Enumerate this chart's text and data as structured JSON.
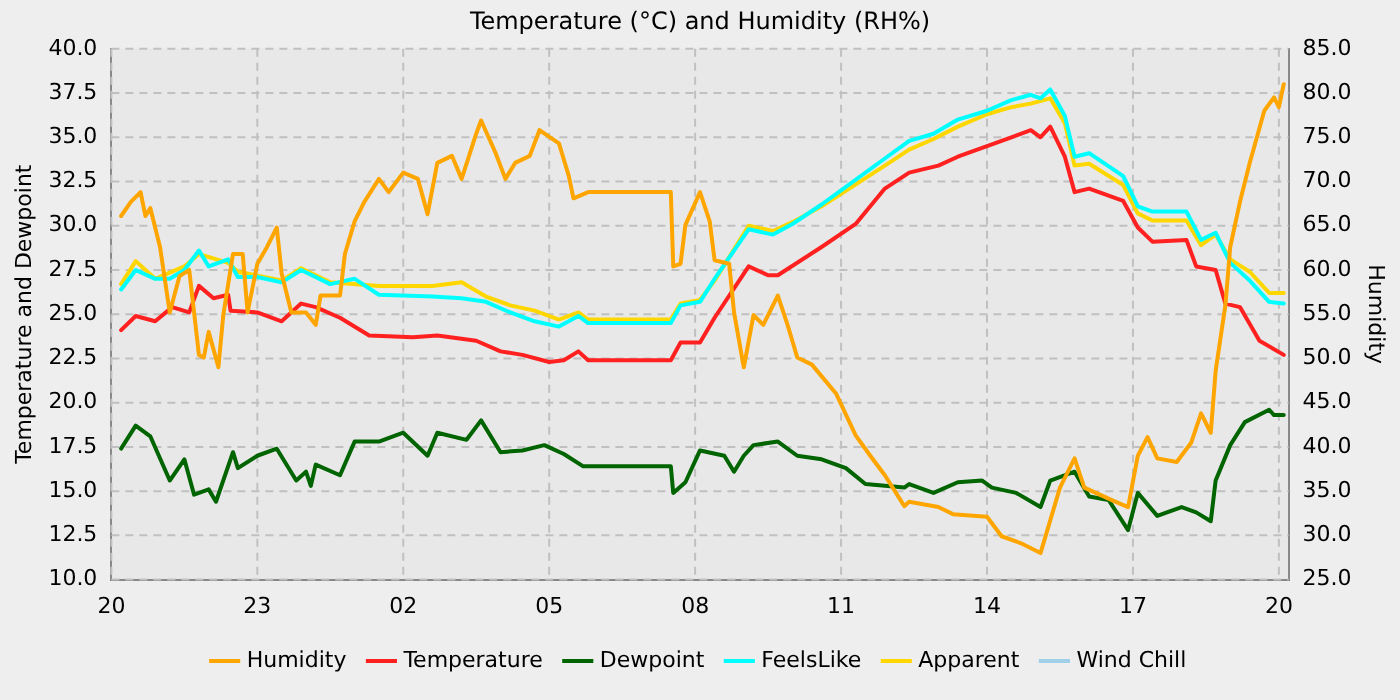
{
  "chart_data": {
    "type": "line",
    "title": "Temperature (°C) and Humidity (RH%)",
    "ylabel": "Temperature and Dewpoint",
    "y2label": "Humidity",
    "xlim": [
      "--01-01T20:00",
      "--01-02T20:12"
    ],
    "xticks": [
      {
        "value": "--01-01T20:00",
        "label": "20"
      },
      {
        "value": "--01-01T23:00",
        "label": "23"
      },
      {
        "value": "--01-02T02:00",
        "label": "02"
      },
      {
        "value": "--01-02T05:00",
        "label": "05"
      },
      {
        "value": "--01-02T08:00",
        "label": "08"
      },
      {
        "value": "--01-02T11:00",
        "label": "11"
      },
      {
        "value": "--01-02T14:00",
        "label": "14"
      },
      {
        "value": "--01-02T17:00",
        "label": "17"
      },
      {
        "value": "--01-02T20:00",
        "label": "20"
      }
    ],
    "ylim": [
      10,
      40
    ],
    "yticks": [
      {
        "value": 10,
        "label": "10.0"
      },
      {
        "value": 12.5,
        "label": "12.5"
      },
      {
        "value": 15,
        "label": "15.0"
      },
      {
        "value": 17.5,
        "label": "17.5"
      },
      {
        "value": 20,
        "label": "20.0"
      },
      {
        "value": 22.5,
        "label": "22.5"
      },
      {
        "value": 25,
        "label": "25.0"
      },
      {
        "value": 27.5,
        "label": "27.5"
      },
      {
        "value": 30,
        "label": "30.0"
      },
      {
        "value": 32.5,
        "label": "32.5"
      },
      {
        "value": 35,
        "label": "35.0"
      },
      {
        "value": 37.5,
        "label": "37.5"
      },
      {
        "value": 40,
        "label": "40.0"
      }
    ],
    "y2lim": [
      25,
      85
    ],
    "y2ticks": [
      {
        "value": 25,
        "label": "25.0"
      },
      {
        "value": 30,
        "label": "30.0"
      },
      {
        "value": 35,
        "label": "35.0"
      },
      {
        "value": 40,
        "label": "40.0"
      },
      {
        "value": 45,
        "label": "45.0"
      },
      {
        "value": 50,
        "label": "50.0"
      },
      {
        "value": 55,
        "label": "55.0"
      },
      {
        "value": 60,
        "label": "60.0"
      },
      {
        "value": 65,
        "label": "65.0"
      },
      {
        "value": 70,
        "label": "70.0"
      },
      {
        "value": 75,
        "label": "75.0"
      },
      {
        "value": 80,
        "label": "80.0"
      },
      {
        "value": 85,
        "label": "85.0"
      }
    ],
    "grid": true,
    "legend": "bottom",
    "marker": "none",
    "line_style": "solid",
    "series": [
      {
        "name": "Humidity",
        "color": "#ffa500",
        "axis": "y2",
        "x": [
          "--01-01T20:12",
          "--01-01T20:24",
          "--01-01T20:36",
          "--01-01T20:42",
          "--01-01T20:48",
          "--01-01T21:00",
          "--01-01T21:12",
          "--01-01T21:24",
          "--01-01T21:36",
          "--01-01T21:48",
          "--01-01T21:54",
          "--01-01T22:00",
          "--01-01T22:12",
          "--01-01T22:18",
          "--01-01T22:30",
          "--01-01T22:42",
          "--01-01T22:48",
          "--01-01T23:00",
          "--01-01T23:12",
          "--01-01T23:24",
          "--01-01T23:30",
          "--01-01T23:42",
          "--01-02T00:00",
          "--01-02T00:12",
          "--01-02T00:18",
          "--01-02T00:42",
          "--01-02T00:48",
          "--01-02T01:00",
          "--01-02T01:12",
          "--01-02T01:30",
          "--01-02T01:42",
          "--01-02T02:00",
          "--01-02T02:18",
          "--01-02T02:30",
          "--01-02T02:42",
          "--01-02T03:00",
          "--01-02T03:12",
          "--01-02T03:30",
          "--01-02T03:36",
          "--01-02T03:54",
          "--01-02T04:06",
          "--01-02T04:18",
          "--01-02T04:36",
          "--01-02T04:48",
          "--01-02T05:12",
          "--01-02T05:24",
          "--01-02T05:30",
          "--01-02T05:48",
          "--01-02T07:30",
          "--01-02T07:33",
          "--01-02T07:42",
          "--01-02T07:48",
          "--01-02T08:06",
          "--01-02T08:18",
          "--01-02T08:24",
          "--01-02T08:42",
          "--01-02T08:48",
          "--01-02T09:00",
          "--01-02T09:12",
          "--01-02T09:24",
          "--01-02T09:42",
          "--01-02T09:54",
          "--01-02T10:06",
          "--01-02T10:24",
          "--01-02T10:54",
          "--01-02T11:18",
          "--01-02T11:36",
          "--01-02T11:54",
          "--01-02T12:18",
          "--01-02T12:24",
          "--01-02T13:00",
          "--01-02T13:18",
          "--01-02T14:00",
          "--01-02T14:18",
          "--01-02T14:42",
          "--01-02T15:06",
          "--01-02T15:18",
          "--01-02T15:30",
          "--01-02T15:48",
          "--01-02T16:00",
          "--01-02T16:36",
          "--01-02T16:54",
          "--01-02T17:06",
          "--01-02T17:18",
          "--01-02T17:30",
          "--01-02T17:54",
          "--01-02T18:12",
          "--01-02T18:24",
          "--01-02T18:36",
          "--01-02T18:42",
          "--01-02T18:54",
          "--01-02T19:00",
          "--01-02T19:12",
          "--01-02T19:24",
          "--01-02T19:42",
          "--01-02T19:54",
          "--01-02T20:00",
          "--01-02T20:06"
        ],
        "values": [
          66.1,
          67.7,
          68.8,
          66.1,
          67.0,
          62.6,
          55.2,
          59.3,
          60.0,
          50.4,
          50.1,
          53.0,
          49.0,
          54.9,
          61.8,
          61.8,
          55.2,
          60.7,
          62.6,
          64.8,
          59.6,
          55.2,
          55.2,
          53.8,
          57.1,
          57.1,
          61.8,
          65.5,
          67.7,
          70.3,
          68.8,
          71.0,
          70.3,
          66.3,
          72.1,
          72.9,
          70.3,
          75.4,
          76.9,
          73.2,
          70.3,
          72.1,
          72.9,
          75.8,
          74.3,
          70.7,
          68.1,
          68.8,
          68.8,
          60.4,
          60.7,
          65.1,
          68.8,
          65.5,
          61.1,
          60.7,
          55.2,
          49.0,
          54.9,
          53.8,
          57.1,
          53.8,
          50.1,
          49.3,
          46.0,
          41.3,
          39.0,
          36.8,
          33.3,
          33.8,
          33.2,
          32.4,
          32.1,
          29.9,
          29.1,
          28.0,
          31.7,
          35.4,
          38.7,
          35.4,
          33.9,
          33.2,
          39.0,
          41.1,
          38.7,
          38.3,
          40.5,
          43.8,
          41.6,
          48.6,
          56.0,
          62.6,
          67.7,
          72.1,
          78.0,
          79.5,
          78.4,
          81.0
        ]
      },
      {
        "name": "Temperature",
        "color": "#ff2020",
        "x": [
          "--01-01T20:12",
          "--01-01T20:30",
          "--01-01T20:54",
          "--01-01T21:15",
          "--01-01T21:36",
          "--01-01T21:48",
          "--01-01T22:06",
          "--01-01T22:24",
          "--01-01T22:27",
          "--01-01T23:00",
          "--01-01T23:30",
          "--01-01T23:54",
          "--01-02T00:12",
          "--01-02T00:42",
          "--01-02T01:18",
          "--01-02T02:12",
          "--01-02T02:42",
          "--01-02T03:30",
          "--01-02T04:00",
          "--01-02T04:27",
          "--01-02T05:00",
          "--01-02T05:18",
          "--01-02T05:36",
          "--01-02T05:48",
          "--01-02T07:30",
          "--01-02T07:42",
          "--01-02T08:06",
          "--01-02T08:24",
          "--01-02T09:06",
          "--01-02T09:30",
          "--01-02T09:42",
          "--01-02T10:36",
          "--01-02T11:18",
          "--01-02T11:54",
          "--01-02T12:24",
          "--01-02T13:00",
          "--01-02T13:24",
          "--01-02T14:00",
          "--01-02T14:30",
          "--01-02T14:54",
          "--01-02T15:06",
          "--01-02T15:18",
          "--01-02T15:36",
          "--01-02T15:48",
          "--01-02T16:06",
          "--01-02T16:48",
          "--01-02T17:06",
          "--01-02T17:24",
          "--01-02T18:06",
          "--01-02T18:18",
          "--01-02T18:42",
          "--01-02T18:54",
          "--01-02T19:12",
          "--01-02T19:36",
          "--01-02T20:06"
        ],
        "values": [
          24.1,
          24.9,
          24.6,
          25.4,
          25.1,
          26.6,
          25.9,
          26.1,
          25.2,
          25.1,
          24.6,
          25.6,
          25.4,
          24.8,
          23.8,
          23.7,
          23.8,
          23.5,
          22.9,
          22.7,
          22.3,
          22.4,
          22.9,
          22.4,
          22.4,
          23.4,
          23.4,
          24.8,
          27.7,
          27.2,
          27.2,
          28.8,
          30.1,
          32.1,
          33.0,
          33.4,
          33.9,
          34.5,
          35.0,
          35.4,
          35.0,
          35.6,
          33.9,
          31.9,
          32.1,
          31.4,
          29.9,
          29.1,
          29.2,
          27.7,
          27.5,
          25.6,
          25.4,
          23.5,
          22.7
        ]
      },
      {
        "name": "Dewpoint",
        "color": "#006400",
        "x": [
          "--01-01T20:12",
          "--01-01T20:30",
          "--01-01T20:48",
          "--01-01T21:12",
          "--01-01T21:30",
          "--01-01T21:42",
          "--01-01T22:00",
          "--01-01T22:09",
          "--01-01T22:30",
          "--01-01T22:36",
          "--01-01T23:00",
          "--01-01T23:24",
          "--01-01T23:48",
          "--01-02T00:00",
          "--01-02T00:06",
          "--01-02T00:12",
          "--01-02T00:42",
          "--01-02T01:00",
          "--01-02T01:30",
          "--01-02T02:00",
          "--01-02T02:30",
          "--01-02T02:42",
          "--01-02T03:18",
          "--01-02T03:36",
          "--01-02T04:00",
          "--01-02T04:27",
          "--01-02T04:54",
          "--01-02T05:18",
          "--01-02T05:42",
          "--01-02T07:30",
          "--01-02T07:33",
          "--01-02T07:48",
          "--01-02T08:06",
          "--01-02T08:36",
          "--01-02T08:48",
          "--01-02T09:00",
          "--01-02T09:12",
          "--01-02T09:42",
          "--01-02T10:06",
          "--01-02T10:36",
          "--01-02T11:06",
          "--01-02T11:30",
          "--01-02T11:54",
          "--01-02T12:18",
          "--01-02T12:24",
          "--01-02T12:54",
          "--01-02T13:24",
          "--01-02T13:54",
          "--01-02T14:06",
          "--01-02T14:36",
          "--01-02T15:06",
          "--01-02T15:18",
          "--01-02T15:48",
          "--01-02T16:06",
          "--01-02T16:30",
          "--01-02T16:54",
          "--01-02T17:06",
          "--01-02T17:30",
          "--01-02T18:00",
          "--01-02T18:18",
          "--01-02T18:36",
          "--01-02T18:42",
          "--01-02T19:00",
          "--01-02T19:18",
          "--01-02T19:48",
          "--01-02T19:54",
          "--01-02T20:06"
        ],
        "values": [
          17.4,
          18.7,
          18.1,
          15.6,
          16.8,
          14.8,
          15.1,
          14.4,
          17.2,
          16.3,
          17.0,
          17.4,
          15.6,
          16.1,
          15.3,
          16.5,
          15.9,
          17.8,
          17.8,
          18.3,
          17.0,
          18.3,
          17.9,
          19.0,
          17.2,
          17.3,
          17.6,
          17.1,
          16.4,
          16.4,
          14.9,
          15.5,
          17.3,
          17.0,
          16.1,
          17.0,
          17.6,
          17.8,
          17.0,
          16.8,
          16.3,
          15.4,
          15.3,
          15.2,
          15.4,
          14.9,
          15.5,
          15.6,
          15.2,
          14.9,
          14.1,
          15.6,
          16.1,
          14.7,
          14.5,
          12.8,
          14.9,
          13.6,
          14.1,
          13.8,
          13.3,
          15.6,
          17.6,
          18.9,
          19.6,
          19.3,
          19.3
        ]
      },
      {
        "name": "FeelsLike",
        "color": "#00ffff",
        "x": [
          "--01-01T20:12",
          "--01-01T20:30",
          "--01-01T20:54",
          "--01-01T21:12",
          "--01-01T21:30",
          "--01-01T21:48",
          "--01-01T22:00",
          "--01-01T22:24",
          "--01-01T22:36",
          "--01-01T23:00",
          "--01-01T23:30",
          "--01-01T23:54",
          "--01-02T00:30",
          "--01-02T01:00",
          "--01-02T01:30",
          "--01-02T02:36",
          "--01-02T03:12",
          "--01-02T03:42",
          "--01-02T04:12",
          "--01-02T04:42",
          "--01-02T05:12",
          "--01-02T05:36",
          "--01-02T05:48",
          "--01-02T07:30",
          "--01-02T07:42",
          "--01-02T08:06",
          "--01-02T08:24",
          "--01-02T09:06",
          "--01-02T09:36",
          "--01-02T10:00",
          "--01-02T10:36",
          "--01-02T11:00",
          "--01-02T11:54",
          "--01-02T12:24",
          "--01-02T12:54",
          "--01-02T13:24",
          "--01-02T14:00",
          "--01-02T14:30",
          "--01-02T14:54",
          "--01-02T15:06",
          "--01-02T15:18",
          "--01-02T15:36",
          "--01-02T15:48",
          "--01-02T16:06",
          "--01-02T16:48",
          "--01-02T17:06",
          "--01-02T17:24",
          "--01-02T18:06",
          "--01-02T18:24",
          "--01-02T18:42",
          "--01-02T19:00",
          "--01-02T19:24",
          "--01-02T19:48",
          "--01-02T20:06"
        ],
        "values": [
          26.4,
          27.5,
          27.0,
          27.0,
          27.5,
          28.6,
          27.7,
          28.1,
          27.1,
          27.1,
          26.8,
          27.5,
          26.7,
          27.0,
          26.1,
          26.0,
          25.9,
          25.7,
          25.1,
          24.6,
          24.3,
          24.9,
          24.5,
          24.5,
          25.5,
          25.7,
          27.0,
          29.8,
          29.5,
          30.1,
          31.2,
          32.0,
          33.8,
          34.8,
          35.2,
          36.0,
          36.5,
          37.1,
          37.4,
          37.2,
          37.7,
          36.2,
          33.9,
          34.1,
          32.8,
          31.1,
          30.8,
          30.8,
          29.2,
          29.6,
          27.9,
          26.9,
          25.7,
          25.6
        ]
      },
      {
        "name": "Apparent",
        "color": "#ffd700",
        "x": [
          "--01-01T20:12",
          "--01-01T20:30",
          "--01-01T20:54",
          "--01-01T21:30",
          "--01-01T21:48",
          "--01-01T22:24",
          "--01-01T22:36",
          "--01-01T23:30",
          "--01-01T23:54",
          "--01-02T00:30",
          "--01-02T01:30",
          "--01-02T02:36",
          "--01-02T03:12",
          "--01-02T03:42",
          "--01-02T04:12",
          "--01-02T04:42",
          "--01-02T05:12",
          "--01-02T05:36",
          "--01-02T05:48",
          "--01-02T07:30",
          "--01-02T07:42",
          "--01-02T08:06",
          "--01-02T08:24",
          "--01-02T09:06",
          "--01-02T09:36",
          "--01-02T10:00",
          "--01-02T10:36",
          "--01-02T11:00",
          "--01-02T11:54",
          "--01-02T12:24",
          "--01-02T12:54",
          "--01-02T13:24",
          "--01-02T14:00",
          "--01-02T14:30",
          "--01-02T14:54",
          "--01-02T15:18",
          "--01-02T15:36",
          "--01-02T15:48",
          "--01-02T16:06",
          "--01-02T16:48",
          "--01-02T17:06",
          "--01-02T17:24",
          "--01-02T18:06",
          "--01-02T18:24",
          "--01-02T18:42",
          "--01-02T19:00",
          "--01-02T19:24",
          "--01-02T19:48",
          "--01-02T20:06"
        ],
        "values": [
          26.7,
          28.0,
          27.0,
          27.7,
          28.4,
          27.9,
          27.4,
          26.9,
          27.6,
          26.8,
          26.6,
          26.6,
          26.8,
          26.0,
          25.5,
          25.2,
          24.7,
          25.1,
          24.7,
          24.7,
          25.6,
          25.8,
          26.9,
          30.0,
          29.7,
          30.2,
          31.1,
          31.8,
          33.4,
          34.3,
          34.9,
          35.6,
          36.3,
          36.7,
          36.9,
          37.2,
          35.8,
          33.4,
          33.5,
          32.3,
          30.7,
          30.3,
          30.3,
          28.9,
          29.5,
          28.1,
          27.4,
          26.2,
          26.2
        ]
      },
      {
        "name": "Wind Chill",
        "color": "#a0d0e8"
      }
    ]
  }
}
